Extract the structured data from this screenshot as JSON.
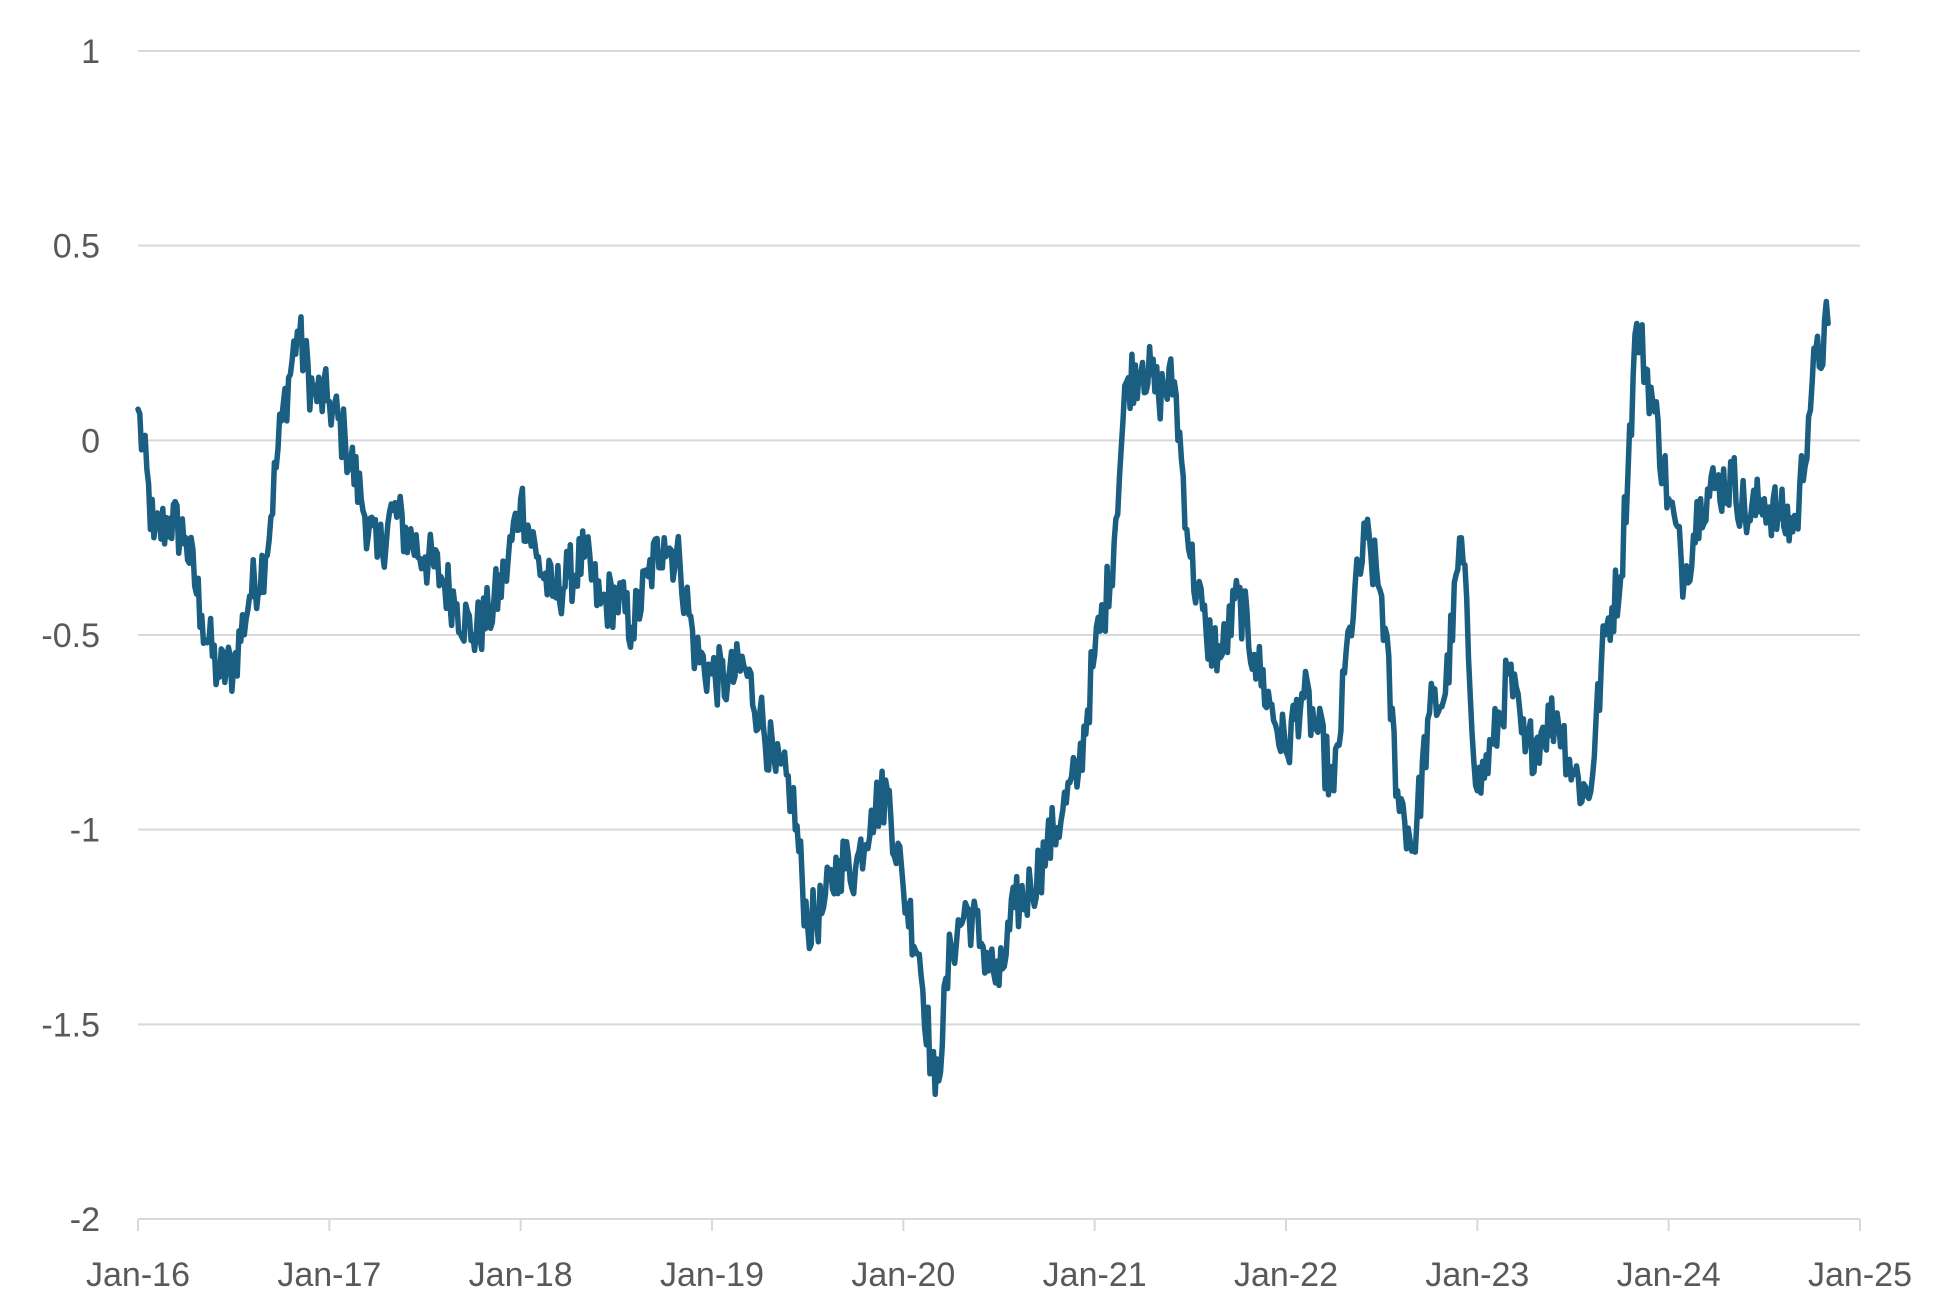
{
  "chart_data": {
    "type": "line",
    "title": "",
    "xlabel": "",
    "ylabel": "",
    "ylim": [
      -2,
      1
    ],
    "yticks": [
      {
        "value": 1,
        "label": "1"
      },
      {
        "value": 0.5,
        "label": "0.5"
      },
      {
        "value": 0,
        "label": "0"
      },
      {
        "value": -0.5,
        "label": "-0.5"
      },
      {
        "value": -1,
        "label": "-1"
      },
      {
        "value": -1.5,
        "label": "-1.5"
      },
      {
        "value": -2,
        "label": "-2"
      }
    ],
    "xlim": [
      "2016-01",
      "2025-01"
    ],
    "xticks": [
      "Jan-16",
      "Jan-17",
      "Jan-18",
      "Jan-19",
      "Jan-20",
      "Jan-21",
      "Jan-22",
      "Jan-23",
      "Jan-24",
      "Jan-25"
    ],
    "grid": "horizontal",
    "legend": "none",
    "color": "#1a5e82",
    "series": [
      {
        "x": [
          "2016-01",
          "2016-02",
          "2016-03",
          "2016-04",
          "2016-05",
          "2016-06",
          "2016-07",
          "2016-08",
          "2016-09",
          "2016-10",
          "2016-11",
          "2016-12",
          "2017-01",
          "2017-02",
          "2017-03",
          "2017-04",
          "2017-05",
          "2017-06",
          "2017-07",
          "2017-08",
          "2017-09",
          "2017-10",
          "2017-11",
          "2017-12",
          "2018-01",
          "2018-02",
          "2018-03",
          "2018-04",
          "2018-05",
          "2018-06",
          "2018-07",
          "2018-08",
          "2018-09",
          "2018-10",
          "2018-11",
          "2018-12",
          "2019-01",
          "2019-02",
          "2019-03",
          "2019-04",
          "2019-05",
          "2019-06",
          "2019-07",
          "2019-08",
          "2019-09",
          "2019-10",
          "2019-11",
          "2019-12",
          "2020-01",
          "2020-02",
          "2020-03",
          "2020-04",
          "2020-05",
          "2020-06",
          "2020-07",
          "2020-08",
          "2020-09",
          "2020-10",
          "2020-11",
          "2020-12",
          "2021-01",
          "2021-02",
          "2021-03",
          "2021-04",
          "2021-05",
          "2021-06",
          "2021-07",
          "2021-08",
          "2021-09",
          "2021-10",
          "2021-11",
          "2021-12",
          "2022-01",
          "2022-02",
          "2022-03",
          "2022-04",
          "2022-05",
          "2022-06",
          "2022-07",
          "2022-08",
          "2022-09",
          "2022-10",
          "2022-11",
          "2022-12",
          "2023-01",
          "2023-02",
          "2023-03",
          "2023-04",
          "2023-05",
          "2023-06",
          "2023-07",
          "2023-08",
          "2023-09",
          "2023-10",
          "2023-11",
          "2023-12",
          "2024-01",
          "2024-02",
          "2024-03",
          "2024-04",
          "2024-05",
          "2024-06",
          "2024-07",
          "2024-08",
          "2024-09",
          "2024-10",
          "2024-11"
        ],
        "values": [
          0.08,
          -0.25,
          -0.2,
          -0.25,
          -0.45,
          -0.6,
          -0.58,
          -0.4,
          -0.3,
          0.05,
          0.28,
          0.12,
          0.1,
          0.0,
          -0.15,
          -0.3,
          -0.18,
          -0.25,
          -0.3,
          -0.35,
          -0.42,
          -0.5,
          -0.45,
          -0.35,
          -0.15,
          -0.3,
          -0.4,
          -0.35,
          -0.3,
          -0.42,
          -0.4,
          -0.48,
          -0.35,
          -0.25,
          -0.32,
          -0.55,
          -0.6,
          -0.62,
          -0.58,
          -0.7,
          -0.85,
          -0.9,
          -1.25,
          -1.2,
          -1.08,
          -1.1,
          -0.95,
          -0.9,
          -1.15,
          -1.32,
          -1.68,
          -1.3,
          -1.2,
          -1.3,
          -1.4,
          -1.2,
          -1.15,
          -1.05,
          -0.95,
          -0.85,
          -0.55,
          -0.35,
          0.15,
          0.2,
          0.12,
          0.15,
          -0.3,
          -0.5,
          -0.55,
          -0.4,
          -0.55,
          -0.68,
          -0.8,
          -0.65,
          -0.75,
          -0.9,
          -0.48,
          -0.25,
          -0.4,
          -0.9,
          -1.05,
          -0.7,
          -0.65,
          -0.25,
          -0.9,
          -0.78,
          -0.6,
          -0.8,
          -0.75,
          -0.7,
          -0.85,
          -0.92,
          -0.5,
          -0.35,
          0.3,
          0.1,
          -0.15,
          -0.35,
          -0.15,
          -0.12,
          -0.1,
          -0.2,
          -0.15,
          -0.2,
          -0.22,
          0.15,
          0.3
        ]
      }
    ]
  }
}
